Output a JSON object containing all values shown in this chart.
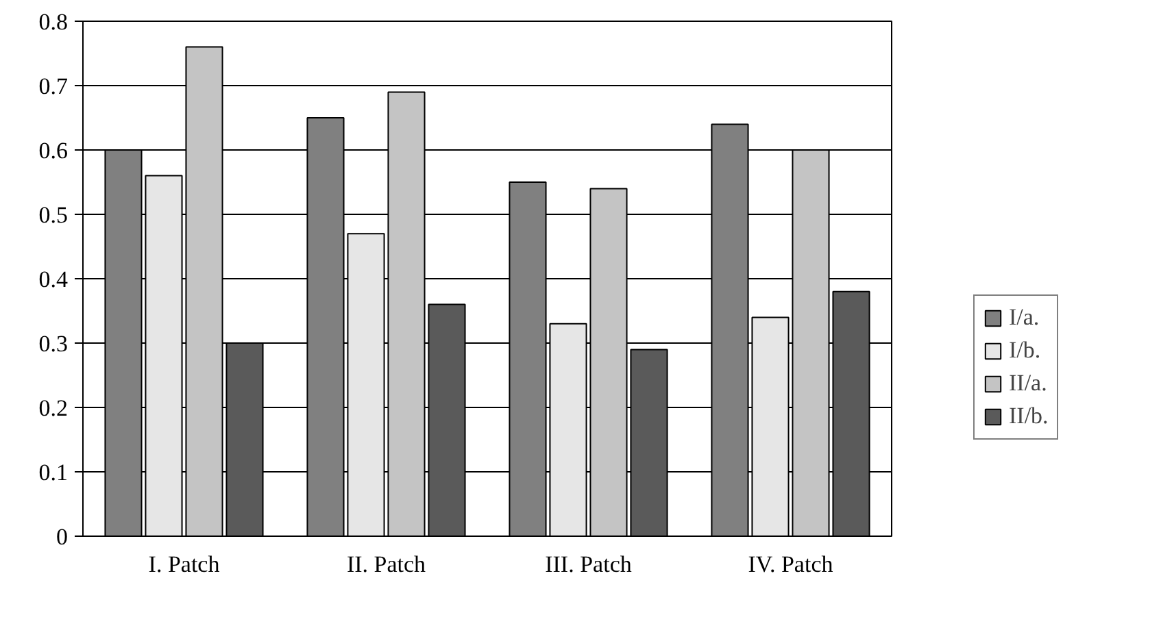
{
  "chart_data": {
    "type": "bar",
    "categories": [
      "I. Patch",
      "II. Patch",
      "III. Patch",
      "IV. Patch"
    ],
    "series": [
      {
        "name": "I/a.",
        "color": "#808080",
        "values": [
          0.6,
          0.65,
          0.55,
          0.64
        ]
      },
      {
        "name": "I/b.",
        "color": "#e6e6e6",
        "values": [
          0.56,
          0.47,
          0.33,
          0.34
        ]
      },
      {
        "name": "II/a.",
        "color": "#c4c4c4",
        "values": [
          0.76,
          0.69,
          0.54,
          0.6
        ]
      },
      {
        "name": "II/b.",
        "color": "#5a5a5a",
        "values": [
          0.3,
          0.36,
          0.29,
          0.38
        ]
      }
    ],
    "ylim": [
      0,
      0.8
    ],
    "yticks": [
      0,
      0.1,
      0.2,
      0.3,
      0.4,
      0.5,
      0.6,
      0.7,
      0.8
    ],
    "grid": "y",
    "legend": "right"
  }
}
